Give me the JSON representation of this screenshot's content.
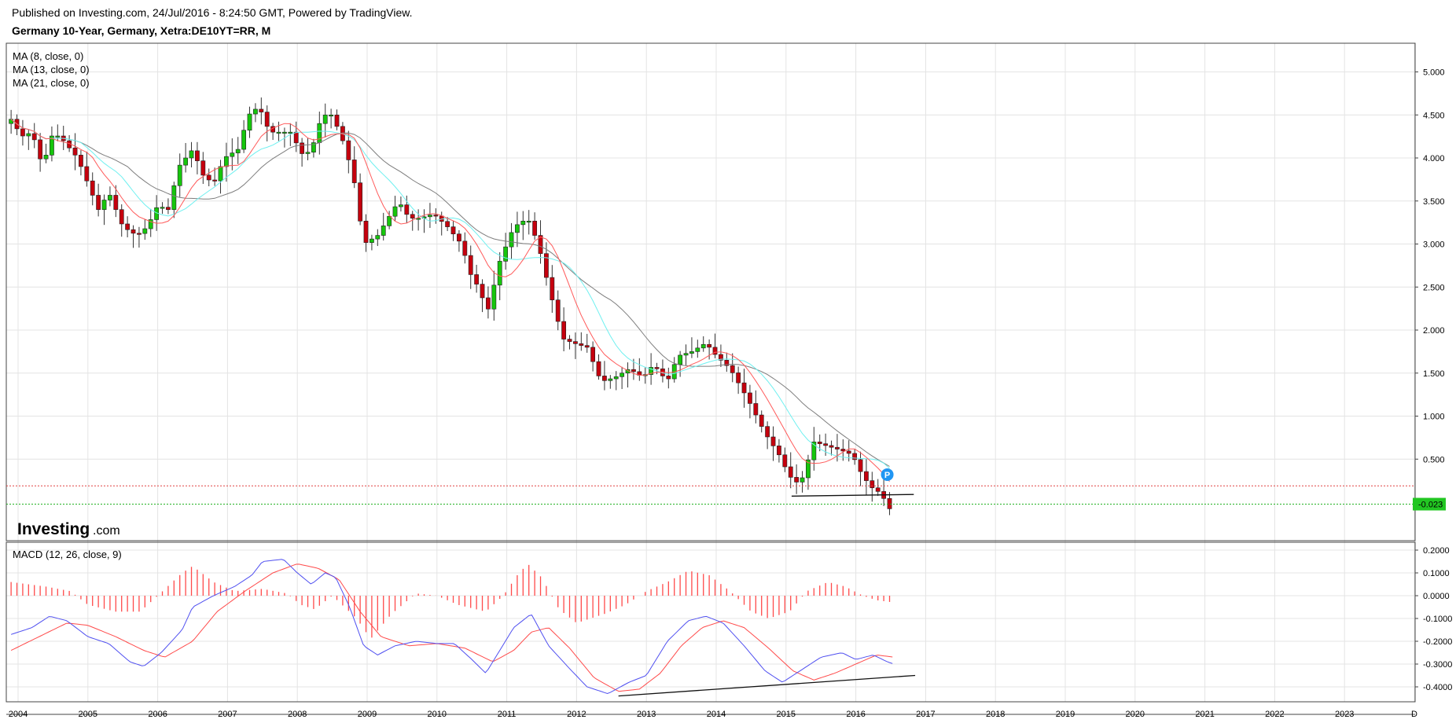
{
  "header": {
    "published": "Published on Investing.com, 24/Jul/2016 - 8:24:50 GMT, Powered by TradingView.",
    "title": "Germany 10-Year, Germany, Xetra:DE10YT=RR, M"
  },
  "logo": {
    "main": "Investing",
    "suffix": ".com"
  },
  "colors": {
    "up": "#16c60c",
    "down": "#c5000e",
    "ma8": "#ff5a5a",
    "ma13": "#6ff0f0",
    "ma21": "#7d7d7d",
    "macd": "#4f4ff0",
    "signal": "#ff4a4a",
    "hist": "#ff4a4a",
    "last_price_bg": "#22c622",
    "marker": "#2196f3"
  },
  "chart_data": [
    {
      "type": "candlestick",
      "name": "price",
      "interval": "monthly",
      "legend": [
        "MA (8, close, 0)",
        "MA (13, close, 0)",
        "MA (21, close, 0)"
      ],
      "ylim": [
        -0.35,
        5.15
      ],
      "y_ticks": [
        "5.000",
        "4.500",
        "4.000",
        "3.500",
        "3.000",
        "2.500",
        "2.000",
        "1.500",
        "1.000",
        "0.500"
      ],
      "last_price_label": "-0.023",
      "last_price": -0.023,
      "resistance_level": 0.19,
      "support_line": {
        "from": [
          2015.08,
          0.07
        ],
        "to": [
          2016.83,
          0.09
        ]
      },
      "marker_label": "P",
      "marker": [
        2016.45,
        0.32
      ],
      "anchors": [
        [
          2003.9,
          4.45
        ],
        [
          2004.05,
          4.25
        ],
        [
          2004.2,
          4.3
        ],
        [
          2004.35,
          3.9
        ],
        [
          2004.5,
          4.3
        ],
        [
          2004.65,
          4.2
        ],
        [
          2004.85,
          4.0
        ],
        [
          2005.0,
          3.7
        ],
        [
          2005.15,
          3.4
        ],
        [
          2005.3,
          3.6
        ],
        [
          2005.5,
          3.2
        ],
        [
          2005.7,
          3.1
        ],
        [
          2005.85,
          3.2
        ],
        [
          2006.0,
          3.45
        ],
        [
          2006.15,
          3.4
        ],
        [
          2006.3,
          3.9
        ],
        [
          2006.5,
          4.1
        ],
        [
          2006.65,
          3.8
        ],
        [
          2006.8,
          3.7
        ],
        [
          2006.95,
          4.0
        ],
        [
          2007.15,
          4.1
        ],
        [
          2007.3,
          4.5
        ],
        [
          2007.45,
          4.6
        ],
        [
          2007.6,
          4.3
        ],
        [
          2007.9,
          4.3
        ],
        [
          2008.1,
          4.0
        ],
        [
          2008.25,
          4.2
        ],
        [
          2008.35,
          4.5
        ],
        [
          2008.5,
          4.5
        ],
        [
          2008.65,
          4.2
        ],
        [
          2008.8,
          3.8
        ],
        [
          2008.95,
          3.0
        ],
        [
          2009.15,
          3.1
        ],
        [
          2009.3,
          3.3
        ],
        [
          2009.45,
          3.5
        ],
        [
          2009.6,
          3.3
        ],
        [
          2009.75,
          3.3
        ],
        [
          2009.95,
          3.35
        ],
        [
          2010.15,
          3.2
        ],
        [
          2010.35,
          3.0
        ],
        [
          2010.5,
          2.6
        ],
        [
          2010.6,
          2.5
        ],
        [
          2010.72,
          2.2
        ],
        [
          2010.9,
          2.8
        ],
        [
          2011.1,
          3.2
        ],
        [
          2011.3,
          3.3
        ],
        [
          2011.45,
          3.0
        ],
        [
          2011.6,
          2.5
        ],
        [
          2011.8,
          1.9
        ],
        [
          2011.95,
          1.85
        ],
        [
          2012.15,
          1.8
        ],
        [
          2012.35,
          1.4
        ],
        [
          2012.55,
          1.45
        ],
        [
          2012.75,
          1.55
        ],
        [
          2012.95,
          1.45
        ],
        [
          2013.1,
          1.6
        ],
        [
          2013.3,
          1.4
        ],
        [
          2013.45,
          1.7
        ],
        [
          2013.65,
          1.75
        ],
        [
          2013.85,
          1.85
        ],
        [
          2014.0,
          1.7
        ],
        [
          2014.2,
          1.55
        ],
        [
          2014.45,
          1.2
        ],
        [
          2014.7,
          0.8
        ],
        [
          2014.9,
          0.55
        ],
        [
          2015.05,
          0.3
        ],
        [
          2015.2,
          0.2
        ],
        [
          2015.4,
          0.7
        ],
        [
          2015.6,
          0.65
        ],
        [
          2015.8,
          0.6
        ],
        [
          2015.95,
          0.55
        ],
        [
          2016.1,
          0.3
        ],
        [
          2016.25,
          0.15
        ],
        [
          2016.38,
          0.1
        ],
        [
          2016.45,
          -0.1
        ],
        [
          2016.55,
          -0.03
        ]
      ]
    },
    {
      "type": "macd",
      "name": "MACD (12, 26, close, 9)",
      "ylim": [
        -0.44,
        0.22
      ],
      "y_ticks": [
        "0.2000",
        "0.1000",
        "0.0000",
        "-0.1000",
        "-0.2000",
        "-0.3000",
        "-0.4000"
      ],
      "x_ticks": [
        "2004",
        "2005",
        "2006",
        "2007",
        "2008",
        "2009",
        "2010",
        "2011",
        "2012",
        "2013",
        "2014",
        "2015",
        "2016",
        "2017",
        "2018",
        "2019",
        "2020",
        "2021",
        "2022",
        "2023",
        "D"
      ],
      "trendline": {
        "from": [
          2012.6,
          -0.44
        ],
        "to": [
          2016.85,
          -0.35
        ]
      },
      "macd_anchors": [
        [
          2003.9,
          -0.17
        ],
        [
          2004.2,
          -0.14
        ],
        [
          2004.45,
          -0.09
        ],
        [
          2004.7,
          -0.11
        ],
        [
          2005.0,
          -0.18
        ],
        [
          2005.3,
          -0.21
        ],
        [
          2005.6,
          -0.29
        ],
        [
          2005.8,
          -0.31
        ],
        [
          2006.05,
          -0.25
        ],
        [
          2006.35,
          -0.15
        ],
        [
          2006.5,
          -0.05
        ],
        [
          2006.8,
          0.0
        ],
        [
          2007.1,
          0.04
        ],
        [
          2007.35,
          0.09
        ],
        [
          2007.5,
          0.15
        ],
        [
          2007.8,
          0.16
        ],
        [
          2008.0,
          0.1
        ],
        [
          2008.2,
          0.05
        ],
        [
          2008.4,
          0.1
        ],
        [
          2008.55,
          0.08
        ],
        [
          2008.75,
          -0.05
        ],
        [
          2008.95,
          -0.22
        ],
        [
          2009.15,
          -0.26
        ],
        [
          2009.4,
          -0.22
        ],
        [
          2009.7,
          -0.2
        ],
        [
          2010.0,
          -0.21
        ],
        [
          2010.25,
          -0.21
        ],
        [
          2010.5,
          -0.28
        ],
        [
          2010.7,
          -0.34
        ],
        [
          2010.9,
          -0.24
        ],
        [
          2011.1,
          -0.14
        ],
        [
          2011.35,
          -0.08
        ],
        [
          2011.6,
          -0.22
        ],
        [
          2011.9,
          -0.32
        ],
        [
          2012.15,
          -0.4
        ],
        [
          2012.45,
          -0.43
        ],
        [
          2012.75,
          -0.38
        ],
        [
          2013.0,
          -0.35
        ],
        [
          2013.3,
          -0.2
        ],
        [
          2013.6,
          -0.11
        ],
        [
          2013.85,
          -0.09
        ],
        [
          2014.1,
          -0.12
        ],
        [
          2014.4,
          -0.22
        ],
        [
          2014.7,
          -0.33
        ],
        [
          2014.95,
          -0.38
        ],
        [
          2015.2,
          -0.33
        ],
        [
          2015.5,
          -0.27
        ],
        [
          2015.8,
          -0.25
        ],
        [
          2016.0,
          -0.28
        ],
        [
          2016.25,
          -0.26
        ],
        [
          2016.45,
          -0.29
        ],
        [
          2016.55,
          -0.3
        ]
      ],
      "signal_anchors": [
        [
          2003.9,
          -0.24
        ],
        [
          2004.3,
          -0.18
        ],
        [
          2004.7,
          -0.12
        ],
        [
          2005.0,
          -0.13
        ],
        [
          2005.4,
          -0.18
        ],
        [
          2005.8,
          -0.24
        ],
        [
          2006.1,
          -0.27
        ],
        [
          2006.5,
          -0.2
        ],
        [
          2006.85,
          -0.07
        ],
        [
          2007.25,
          0.02
        ],
        [
          2007.65,
          0.1
        ],
        [
          2008.0,
          0.14
        ],
        [
          2008.3,
          0.12
        ],
        [
          2008.6,
          0.07
        ],
        [
          2008.9,
          -0.07
        ],
        [
          2009.2,
          -0.18
        ],
        [
          2009.6,
          -0.22
        ],
        [
          2010.0,
          -0.21
        ],
        [
          2010.4,
          -0.23
        ],
        [
          2010.8,
          -0.29
        ],
        [
          2011.1,
          -0.24
        ],
        [
          2011.35,
          -0.16
        ],
        [
          2011.6,
          -0.14
        ],
        [
          2011.9,
          -0.23
        ],
        [
          2012.25,
          -0.36
        ],
        [
          2012.6,
          -0.42
        ],
        [
          2012.9,
          -0.41
        ],
        [
          2013.2,
          -0.34
        ],
        [
          2013.5,
          -0.22
        ],
        [
          2013.8,
          -0.14
        ],
        [
          2014.1,
          -0.11
        ],
        [
          2014.4,
          -0.14
        ],
        [
          2014.75,
          -0.23
        ],
        [
          2015.1,
          -0.33
        ],
        [
          2015.4,
          -0.37
        ],
        [
          2015.7,
          -0.34
        ],
        [
          2016.0,
          -0.3
        ],
        [
          2016.3,
          -0.26
        ],
        [
          2016.55,
          -0.27
        ]
      ],
      "histogram_anchors": [
        [
          2003.9,
          0.06
        ],
        [
          2004.4,
          0.04
        ],
        [
          2004.75,
          0.02
        ],
        [
          2005.0,
          -0.04
        ],
        [
          2005.4,
          -0.07
        ],
        [
          2005.75,
          -0.07
        ],
        [
          2006.0,
          0.0
        ],
        [
          2006.35,
          0.1
        ],
        [
          2006.5,
          0.13
        ],
        [
          2006.8,
          0.06
        ],
        [
          2007.1,
          0.02
        ],
        [
          2007.5,
          0.03
        ],
        [
          2007.85,
          0.01
        ],
        [
          2008.05,
          -0.04
        ],
        [
          2008.25,
          -0.06
        ],
        [
          2008.5,
          0.0
        ],
        [
          2008.85,
          -0.1
        ],
        [
          2009.05,
          -0.19
        ],
        [
          2009.35,
          -0.08
        ],
        [
          2009.7,
          0.01
        ],
        [
          2010.0,
          0.0
        ],
        [
          2010.3,
          -0.04
        ],
        [
          2010.7,
          -0.07
        ],
        [
          2010.95,
          0.0
        ],
        [
          2011.15,
          0.09
        ],
        [
          2011.3,
          0.14
        ],
        [
          2011.5,
          0.08
        ],
        [
          2011.75,
          -0.06
        ],
        [
          2012.0,
          -0.12
        ],
        [
          2012.4,
          -0.08
        ],
        [
          2012.7,
          -0.04
        ],
        [
          2013.0,
          0.02
        ],
        [
          2013.3,
          0.06
        ],
        [
          2013.6,
          0.11
        ],
        [
          2013.9,
          0.09
        ],
        [
          2014.2,
          0.02
        ],
        [
          2014.5,
          -0.07
        ],
        [
          2014.75,
          -0.1
        ],
        [
          2015.05,
          -0.07
        ],
        [
          2015.3,
          0.02
        ],
        [
          2015.6,
          0.06
        ],
        [
          2015.85,
          0.04
        ],
        [
          2016.1,
          0.0
        ],
        [
          2016.3,
          -0.02
        ],
        [
          2016.55,
          -0.03
        ]
      ]
    }
  ]
}
